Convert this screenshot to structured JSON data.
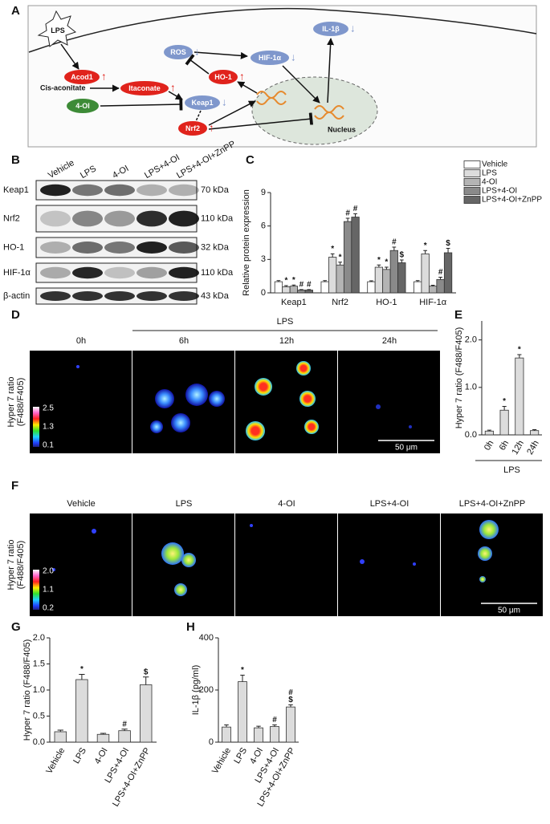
{
  "panel_labels": [
    "A",
    "B",
    "C",
    "D",
    "E",
    "F",
    "G",
    "H"
  ],
  "diagram": {
    "nodes": [
      {
        "label": "LPS"
      },
      {
        "label": "Acod1",
        "change": "↑",
        "color": "#e0231c"
      },
      {
        "label": "Itaconate",
        "change": "↑",
        "color": "#e0231c"
      },
      {
        "label": "4-OI",
        "color": "#3d8b37"
      },
      {
        "label": "Keap1",
        "change": "↓",
        "color": "#7f97cc"
      },
      {
        "label": "Nrf2",
        "change": "↑",
        "color": "#e0231c"
      },
      {
        "label": "ROS",
        "change": "↓",
        "color": "#7f97cc"
      },
      {
        "label": "HO-1",
        "change": "↑",
        "color": "#e0231c"
      },
      {
        "label": "HIF-1α",
        "change": "↓",
        "color": "#7f97cc"
      },
      {
        "label": "IL-1β",
        "change": "↓",
        "color": "#7f97cc"
      }
    ],
    "texts": [
      "Cis-aconitate",
      "Nucleus"
    ]
  },
  "blot": {
    "lanes": [
      "Vehicle",
      "LPS",
      "4-OI",
      "LPS+4-OI",
      "LPS+4-OI+ZnPP"
    ],
    "rows": [
      {
        "protein": "Keap1",
        "size": "70 kDa"
      },
      {
        "protein": "Nrf2",
        "size": "110 kDa"
      },
      {
        "protein": "HO-1",
        "size": "32 kDa"
      },
      {
        "protein": "HIF-1α",
        "size": "110 kDa"
      },
      {
        "protein": "β-actin",
        "size": "43 kDa"
      }
    ]
  },
  "imaging_time": {
    "group": "LPS",
    "conditions": [
      "0h",
      "6h",
      "12h",
      "24h"
    ],
    "colorbar": [
      "2.5",
      "1.3",
      "0.1"
    ],
    "ylabel": [
      "Hyper 7 ratio",
      "(F488/F405)"
    ],
    "scale_bar": "50 μm"
  },
  "imaging_treatment": {
    "conditions": [
      "Vehicle",
      "LPS",
      "4-OI",
      "LPS+4-OI",
      "LPS+4-OI+ZnPP"
    ],
    "colorbar": [
      "2.0",
      "1.1",
      "0.2"
    ],
    "ylabel": [
      "Hyper 7 ratio",
      "(F488/F405)"
    ],
    "scale_bar": "50 μm"
  },
  "chart_data": [
    {
      "type": "bar",
      "ylabel": "Relative protein expression",
      "categories": [
        "Keap1",
        "Nrf2",
        "HO-1",
        "HIF-1α"
      ],
      "series": [
        {
          "name": "Vehicle",
          "color": "#ffffff",
          "values": [
            1.0,
            1.0,
            1.0,
            1.0
          ],
          "errors": [
            0.1,
            0.1,
            0.08,
            0.1
          ],
          "marks": [
            null,
            null,
            null,
            null
          ]
        },
        {
          "name": "LPS",
          "color": "#dcdcdc",
          "values": [
            0.55,
            3.2,
            2.3,
            3.5
          ],
          "errors": [
            0.1,
            0.3,
            0.2,
            0.3
          ],
          "marks": [
            [
              "*"
            ],
            [
              "*"
            ],
            [
              "*"
            ],
            [
              "*"
            ]
          ]
        },
        {
          "name": "4-OI",
          "color": "#b4b4b4",
          "values": [
            0.6,
            2.5,
            2.1,
            0.6
          ],
          "errors": [
            0.1,
            0.25,
            0.2,
            0.08
          ],
          "marks": [
            [
              "*"
            ],
            [
              "*"
            ],
            [
              "*"
            ],
            null
          ]
        },
        {
          "name": "LPS+4-OI",
          "color": "#8a8a8a",
          "values": [
            0.25,
            6.4,
            3.8,
            1.2
          ],
          "errors": [
            0.05,
            0.3,
            0.3,
            0.2
          ],
          "marks": [
            [
              "#"
            ],
            [
              "#"
            ],
            [
              "#"
            ],
            [
              "#"
            ]
          ]
        },
        {
          "name": "LPS+4-OI+ZnPP",
          "color": "#666666",
          "values": [
            0.25,
            6.8,
            2.7,
            3.6
          ],
          "errors": [
            0.05,
            0.3,
            0.25,
            0.4
          ],
          "marks": [
            [
              "#"
            ],
            [
              "#"
            ],
            [
              "$"
            ],
            [
              "$"
            ]
          ]
        }
      ],
      "ylim": [
        0,
        9
      ],
      "yticks": [
        0,
        3,
        6,
        9
      ],
      "legend": "upper right"
    },
    {
      "type": "bar",
      "ylabel": "Hyper 7 ratio (F488/F405)",
      "categories": [
        "0h",
        "6h",
        "12h",
        "24h"
      ],
      "xgroup": "LPS",
      "color": "#dcdcdc",
      "values": [
        0.08,
        0.52,
        1.62,
        0.09
      ],
      "errors": [
        0.02,
        0.08,
        0.07,
        0.02
      ],
      "marks": [
        null,
        [
          "*"
        ],
        [
          "*"
        ],
        null
      ],
      "ylim": [
        0,
        2.4
      ],
      "yticks": [
        {
          "value": 0,
          "label": "0.0"
        },
        {
          "value": 1,
          "label": "1.0"
        },
        {
          "value": 2,
          "label": "2.0"
        }
      ]
    },
    {
      "type": "bar",
      "ylabel": "Hyper 7 ratio (F488/F405)",
      "categories": [
        "Vehicle",
        "LPS",
        "4-OI",
        "LPS+4-OI",
        "LPS+4-OI+ZnPP"
      ],
      "color": "#dcdcdc",
      "values": [
        0.2,
        1.2,
        0.15,
        0.22,
        1.1
      ],
      "errors": [
        0.03,
        0.1,
        0.02,
        0.03,
        0.15
      ],
      "marks": [
        null,
        [
          "*"
        ],
        null,
        [
          "#"
        ],
        [
          "$"
        ]
      ],
      "ylim": [
        0,
        2.0
      ],
      "yticks": [
        {
          "value": 0,
          "label": "0.0"
        },
        0.5,
        {
          "value": 1,
          "label": "1.0"
        },
        1.5,
        {
          "value": 2,
          "label": "2.0"
        }
      ]
    },
    {
      "type": "bar",
      "ylabel": "IL-1β (pg/ml)",
      "categories": [
        "Vehicle",
        "LPS",
        "4-OI",
        "LPS+4-OI",
        "LPS+4-OI+ZnPP"
      ],
      "color": "#dcdcdc",
      "values": [
        58,
        232,
        55,
        60,
        135
      ],
      "errors": [
        8,
        25,
        6,
        6,
        8
      ],
      "marks": [
        null,
        [
          "*"
        ],
        null,
        [
          "#"
        ],
        [
          "#",
          "$"
        ]
      ],
      "ylim": [
        0,
        400
      ],
      "yticks": [
        0,
        200,
        400
      ]
    }
  ]
}
